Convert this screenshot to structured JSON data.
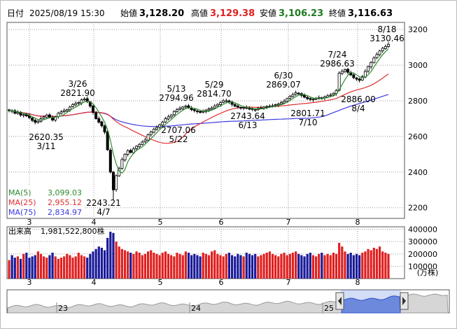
{
  "header": {
    "date_label": "日付",
    "date_value": "2025/08/19 15:30",
    "open_label": "始値",
    "open_value": "3,128.20",
    "high_label": "高値",
    "high_value": "3,129.38",
    "low_label": "安値",
    "low_value": "3,106.23",
    "close_label": "終値",
    "close_value": "3,116.63"
  },
  "ma_legend": [
    {
      "label": "MA(5)",
      "value": "3,099.03",
      "color": "#2e8b2e"
    },
    {
      "label": "MA(25)",
      "value": "2,955.12",
      "color": "#e03030"
    },
    {
      "label": "MA(75)",
      "value": "2,834.97",
      "color": "#3a3ae0"
    }
  ],
  "volume_header": {
    "label": "出来高",
    "value": "1,981,522,800株"
  },
  "volume_unit": "(万株)",
  "overview_ticks": [
    "23",
    "24",
    "25"
  ],
  "colors": {
    "up": "#e02020",
    "down": "#1a1a9a",
    "grid": "#9a9a9a",
    "frame": "#555555",
    "overview_fill": "#5577dd"
  },
  "chart_data": {
    "type": "candlestick",
    "x_ticks": [
      "3",
      "4",
      "5",
      "6",
      "7",
      "8"
    ],
    "y_ticks": [
      "2200",
      "2400",
      "2600",
      "2800",
      "3000",
      "3200"
    ],
    "ylim": [
      2140,
      3240
    ],
    "volume_ticks": [
      "400000",
      "300000",
      "200000",
      "100000"
    ],
    "volume_ylim": [
      0,
      420000
    ],
    "annotations": [
      {
        "date": "3/11",
        "value": "2620.35",
        "kind": "low"
      },
      {
        "date": "3/26",
        "value": "2821.90",
        "kind": "high"
      },
      {
        "date": "4/7",
        "value": "2243.21",
        "kind": "low"
      },
      {
        "date": "5/13",
        "value": "2794.96",
        "kind": "high"
      },
      {
        "date": "5/22",
        "value": "2707.06",
        "kind": "low"
      },
      {
        "date": "5/29",
        "value": "2814.70",
        "kind": "high"
      },
      {
        "date": "6/13",
        "value": "2743.64",
        "kind": "low"
      },
      {
        "date": "6/30",
        "value": "2869.07",
        "kind": "high"
      },
      {
        "date": "7/10",
        "value": "2801.71",
        "kind": "low"
      },
      {
        "date": "7/24",
        "value": "2986.63",
        "kind": "high"
      },
      {
        "date": "8/4",
        "value": "2886.00",
        "kind": "low"
      },
      {
        "date": "8/18",
        "value": "3130.46",
        "kind": "high"
      }
    ],
    "close": [
      2745,
      2742,
      2730,
      2735,
      2720,
      2722,
      2715,
      2705,
      2690,
      2680,
      2685,
      2700,
      2710,
      2720,
      2708,
      2692,
      2710,
      2730,
      2738,
      2745,
      2750,
      2765,
      2778,
      2785,
      2790,
      2805,
      2810,
      2795,
      2770,
      2735,
      2700,
      2680,
      2660,
      2625,
      2525,
      2400,
      2300,
      2380,
      2420,
      2470,
      2500,
      2520,
      2510,
      2530,
      2545,
      2555,
      2568,
      2580,
      2610,
      2625,
      2640,
      2650,
      2665,
      2680,
      2700,
      2710,
      2720,
      2740,
      2750,
      2758,
      2765,
      2770,
      2760,
      2750,
      2745,
      2740,
      2735,
      2740,
      2748,
      2755,
      2760,
      2770,
      2780,
      2790,
      2800,
      2800,
      2792,
      2780,
      2770,
      2765,
      2760,
      2762,
      2758,
      2755,
      2752,
      2750,
      2757,
      2760,
      2765,
      2768,
      2770,
      2772,
      2778,
      2782,
      2790,
      2798,
      2812,
      2825,
      2835,
      2845,
      2840,
      2830,
      2820,
      2812,
      2808,
      2810,
      2812,
      2818,
      2815,
      2822,
      2828,
      2832,
      2842,
      2858,
      2955,
      2965,
      2975,
      2960,
      2945,
      2930,
      2922,
      2915,
      2935,
      2965,
      2992,
      3015,
      3040,
      3060,
      3080,
      3095,
      3105,
      3117
    ],
    "volume": [
      150000,
      190000,
      170000,
      180000,
      160000,
      200000,
      210000,
      170000,
      180000,
      190000,
      220000,
      200000,
      180000,
      170000,
      190000,
      210000,
      180000,
      160000,
      170000,
      180000,
      200000,
      190000,
      170000,
      180000,
      210000,
      190000,
      180000,
      170000,
      200000,
      220000,
      240000,
      260000,
      250000,
      230000,
      330000,
      380000,
      370000,
      300000,
      260000,
      240000,
      230000,
      220000,
      210000,
      200000,
      220000,
      210000,
      190000,
      200000,
      220000,
      230000,
      210000,
      200000,
      190000,
      210000,
      220000,
      200000,
      190000,
      180000,
      210000,
      200000,
      190000,
      220000,
      210000,
      190000,
      200000,
      190000,
      180000,
      210000,
      200000,
      190000,
      220000,
      230000,
      200000,
      190000,
      180000,
      200000,
      210000,
      190000,
      180000,
      200000,
      190000,
      180000,
      210000,
      200000,
      190000,
      200000,
      180000,
      190000,
      200000,
      210000,
      220000,
      200000,
      190000,
      180000,
      200000,
      210000,
      190000,
      200000,
      210000,
      220000,
      200000,
      190000,
      180000,
      200000,
      210000,
      190000,
      180000,
      200000,
      210000,
      190000,
      200000,
      190000,
      210000,
      200000,
      290000,
      260000,
      220000,
      200000,
      210000,
      190000,
      200000,
      190000,
      210000,
      220000,
      240000,
      230000,
      250000,
      240000,
      260000,
      220000,
      210000,
      200000
    ]
  }
}
